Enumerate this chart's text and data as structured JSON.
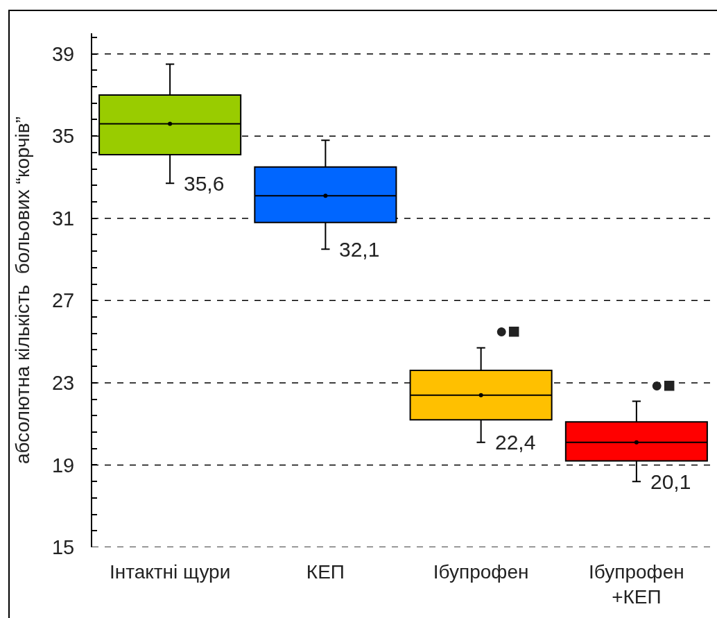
{
  "chart_data": {
    "type": "box",
    "ylabel": "абсолютна кількість  больових “корчів”",
    "categories": [
      "Інтактні щури",
      "КЕП",
      "Ібупрофен",
      "Ібупрофен\n+КЕП"
    ],
    "colors": [
      "#99cc00",
      "#0066ff",
      "#ffc000",
      "#ff0000"
    ],
    "boxes": [
      {
        "low": 32.7,
        "q1": 34.1,
        "median": 35.6,
        "q3": 37,
        "high": 38.5,
        "mean": 35.6
      },
      {
        "low": 29.5,
        "q1": 30.8,
        "median": 32.1,
        "q3": 33.5,
        "high": 34.8,
        "mean": 32.1
      },
      {
        "low": 20.1,
        "q1": 21.2,
        "median": 22.4,
        "q3": 23.6,
        "high": 24.7,
        "mean": 22.4
      },
      {
        "low": 18.2,
        "q1": 19.2,
        "median": 20.1,
        "q3": 21.1,
        "high": 22.1,
        "mean": 20.1
      }
    ],
    "ylim": [
      15,
      40
    ],
    "yticks": [
      15,
      {
        "value": 15.8,
        "label": null
      },
      {
        "value": 16.6,
        "label": null
      },
      {
        "value": 17.4,
        "label": null
      },
      {
        "value": 18.2,
        "label": null
      },
      19,
      {
        "value": 19.8,
        "label": null
      },
      {
        "value": 20.6,
        "label": null
      },
      {
        "value": 21.4,
        "label": null
      },
      {
        "value": 22.2,
        "label": null
      },
      23,
      {
        "value": 23.8,
        "label": null
      },
      {
        "value": 24.6,
        "label": null
      },
      {
        "value": 25.4,
        "label": null
      },
      {
        "value": 26.2,
        "label": null
      },
      27,
      {
        "value": 27.8,
        "label": null
      },
      {
        "value": 28.6,
        "label": null
      },
      {
        "value": 29.4,
        "label": null
      },
      {
        "value": 30.2,
        "label": null
      },
      31,
      {
        "value": 31.8,
        "label": null
      },
      {
        "value": 32.6,
        "label": null
      },
      {
        "value": 33.4,
        "label": null
      },
      {
        "value": 34.2,
        "label": null
      },
      35,
      {
        "value": 35.8,
        "label": null
      },
      {
        "value": 36.6,
        "label": null
      },
      {
        "value": 37.4,
        "label": null
      },
      {
        "value": 38.2,
        "label": null
      },
      39,
      {
        "value": 39.8,
        "label": null
      }
    ],
    "grid": "y",
    "annotations": [
      {
        "text": "35,6",
        "x": "Інтактні щури",
        "y": 32.7
      },
      {
        "text": "32,1",
        "x": "КЕП",
        "y": 29.5
      },
      {
        "text": "22,4",
        "x": "Ібупрофен",
        "y": 20.1
      },
      {
        "text": "20,1",
        "x": "Ібупрофен\n+КЕП",
        "y": 18.2
      },
      {
        "text": "●■",
        "x": "Ібупрофен",
        "y": 24.7
      },
      {
        "text": "●■",
        "x": "Ібупрофен\n+КЕП",
        "y": 22.1
      }
    ]
  }
}
